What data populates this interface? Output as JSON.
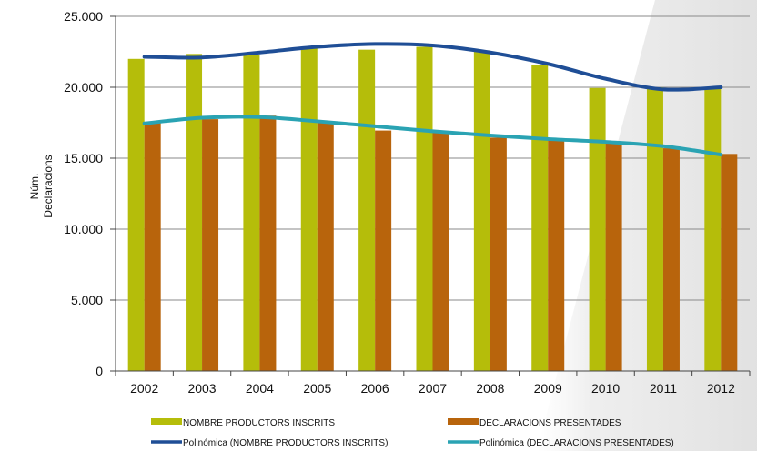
{
  "chart_data": {
    "type": "bar",
    "ylabel": [
      "Núm.",
      "Declaracions"
    ],
    "ylim": [
      0,
      25000
    ],
    "y_ticks": [
      {
        "value": 0,
        "label": "0"
      },
      {
        "value": 5000,
        "label": "5.000"
      },
      {
        "value": 10000,
        "label": "10.000"
      },
      {
        "value": 15000,
        "label": "15.000"
      },
      {
        "value": 20000,
        "label": "20.000"
      },
      {
        "value": 25000,
        "label": "25.000"
      }
    ],
    "grid": true,
    "legend_position": "bottom",
    "categories": [
      "2002",
      "2003",
      "2004",
      "2005",
      "2006",
      "2007",
      "2008",
      "2009",
      "2010",
      "2011",
      "2012"
    ],
    "series": [
      {
        "name": "NOMBRE PRODUCTORS INSCRITS",
        "kind": "bar",
        "color": "#b5bd0a",
        "values": [
          22000,
          22350,
          22300,
          22800,
          22650,
          22850,
          22600,
          21600,
          19950,
          20000,
          20000
        ]
      },
      {
        "name": "DECLARACIONS PRESENTADES",
        "kind": "bar",
        "color": "#b8640c",
        "values": [
          17500,
          17750,
          18000,
          17500,
          16950,
          16900,
          16450,
          16250,
          16050,
          15700,
          15300
        ]
      },
      {
        "name": "Polinómica (NOMBRE PRODUCTORS INSCRITS)",
        "kind": "trendline",
        "color": "#1f4e96",
        "values": [
          22150,
          22100,
          22450,
          22850,
          23050,
          22950,
          22450,
          21650,
          20600,
          19850,
          20000
        ]
      },
      {
        "name": "Polinómica (DECLARACIONS PRESENTADES)",
        "kind": "trendline",
        "color": "#2aa3b3",
        "values": [
          17450,
          17850,
          17900,
          17600,
          17250,
          16900,
          16600,
          16350,
          16150,
          15850,
          15250
        ]
      }
    ]
  }
}
